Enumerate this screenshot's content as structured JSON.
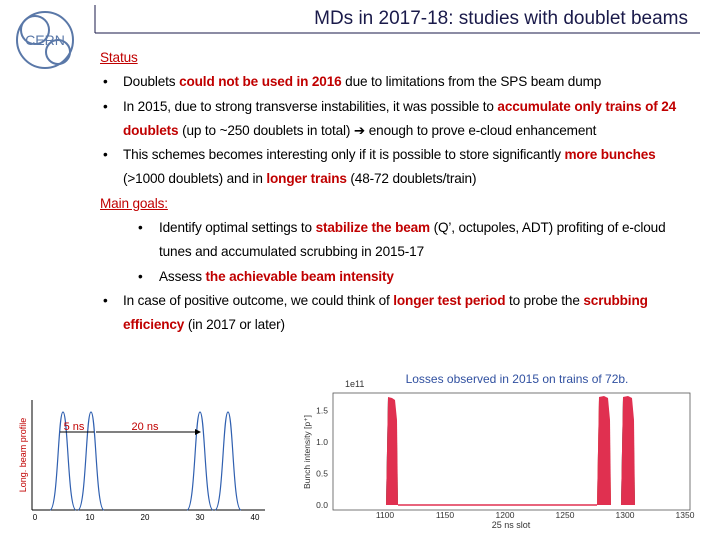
{
  "header": {
    "logo": "CERN",
    "title": "MDs in 2017-18: studies with doublet beams"
  },
  "bullet": "•",
  "sections": [
    {
      "heading": "Status",
      "items": [
        {
          "level": 1,
          "segments": [
            {
              "text": "Doublets "
            },
            {
              "text": "could not be used in 2016",
              "highlight": true
            },
            {
              "text": " due to limitations from the SPS beam dump"
            }
          ]
        },
        {
          "level": 1,
          "segments": [
            {
              "text": "In 2015, due to strong transverse instabilities, it was possible to "
            },
            {
              "text": "accumulate only trains of 24 doublets",
              "highlight": true
            },
            {
              "text": " (up to ~250 doublets in total) ➔ enough to prove e-cloud enhancement"
            }
          ]
        },
        {
          "level": 1,
          "segments": [
            {
              "text": "This schemes becomes interesting only if it is possible to store significantly "
            },
            {
              "text": "more bunches",
              "highlight": true
            },
            {
              "text": " (>1000 doublets) and in "
            },
            {
              "text": "longer trains",
              "highlight": true
            },
            {
              "text": " (48-72 doublets/train)"
            }
          ]
        }
      ]
    },
    {
      "heading": "Main goals:",
      "items": [
        {
          "level": 2,
          "segments": [
            {
              "text": "Identify optimal settings to "
            },
            {
              "text": "stabilize the beam",
              "highlight": true
            },
            {
              "text": " (Q’, octupoles, ADT) profiting of e-cloud tunes and accumulated scrubbing in 2015-17"
            }
          ]
        },
        {
          "level": 2,
          "segments": [
            {
              "text": "Assess "
            },
            {
              "text": "the achievable beam intensity",
              "highlight": true
            }
          ]
        },
        {
          "level": 1,
          "segments": [
            {
              "text": "In case of positive outcome, we could think of "
            },
            {
              "text": "longer test period",
              "highlight": true
            },
            {
              "text": " to probe the "
            },
            {
              "text": "scrubbing efficiency",
              "highlight": true
            },
            {
              "text": " (in 2017 or later)"
            }
          ]
        }
      ]
    }
  ],
  "figures": {
    "profile": {
      "ylabel": "Long. beam profile",
      "xticks": [
        "0",
        "10",
        "20",
        "30",
        "40"
      ],
      "annotations": [
        "5 ns",
        "20 ns"
      ]
    },
    "losses": {
      "caption": "Losses observed in 2015 on trains of 72b.",
      "ylabel": "Bunch intensity [p⁺]",
      "exponent": "1e11",
      "yticks": [
        "0.0",
        "0.5",
        "1.0",
        "1.5"
      ],
      "xticks": [
        "1100",
        "1150",
        "1200",
        "1250",
        "1300",
        "1350"
      ],
      "xlabel": "25 ns slot"
    }
  }
}
